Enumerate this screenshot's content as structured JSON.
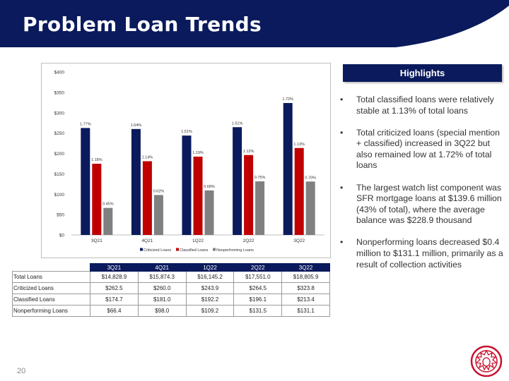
{
  "header": {
    "title": "Problem Loan Trends"
  },
  "colors": {
    "navy": "#0a1a5c",
    "red": "#c00000",
    "gray": "#7f7f7f"
  },
  "chart_data": {
    "type": "bar",
    "categories": [
      "3Q21",
      "4Q21",
      "1Q22",
      "2Q22",
      "3Q22"
    ],
    "ylim": [
      0,
      400
    ],
    "yticks": [
      "$0",
      "$50",
      "$100",
      "$150",
      "$200",
      "$250",
      "$300",
      "$350",
      "$400"
    ],
    "ytick_values": [
      0,
      50,
      100,
      150,
      200,
      250,
      300,
      350,
      400
    ],
    "grid": false,
    "legend": "bottom",
    "series": [
      {
        "name": "Criticized Loans",
        "color": "#0a1a5c",
        "values": [
          262.5,
          260.0,
          243.9,
          264.5,
          323.8
        ],
        "labels": [
          "1.77%",
          "1.64%",
          "1.51%",
          "1.51%",
          "1.72%"
        ]
      },
      {
        "name": "Classified Loans",
        "color": "#c00000",
        "values": [
          174.7,
          181.0,
          192.2,
          196.1,
          213.4
        ],
        "labels": [
          "1.18%",
          "1.14%",
          "1.19%",
          "1.12%",
          "1.13%"
        ]
      },
      {
        "name": "Nonperforming Loans",
        "color": "#808080",
        "values": [
          66.4,
          98.0,
          109.2,
          131.5,
          131.1
        ],
        "labels": [
          "0.45%",
          "0.62%",
          "0.68%",
          "0.75%",
          "0.70%"
        ]
      }
    ]
  },
  "highlights": {
    "header": "Highlights",
    "bullet": "•",
    "items": [
      "Total classified loans were relatively stable at 1.13% of total loans",
      "Total criticized loans (special mention + classified) increased in 3Q22 but also remained low at 1.72% of total loans",
      "The largest watch list component was SFR mortgage loans at $139.6 million (43% of total), where the average balance was $228.9 thousand",
      "Nonperforming loans decreased $0.4 million to $131.1 million, primarily as a result of collection activities"
    ]
  },
  "table": {
    "columns": [
      "3Q21",
      "4Q21",
      "1Q22",
      "2Q22",
      "3Q22"
    ],
    "rows": [
      {
        "label": "Total Loans",
        "values": [
          "$14,828.9",
          "$15,874.3",
          "$16,145.2",
          "$17,551.0",
          "$18,805.9"
        ]
      },
      {
        "label": "Criticized Loans",
        "values": [
          "$262.5",
          "$260.0",
          "$243.9",
          "$264.5",
          "$323.8"
        ]
      },
      {
        "label": "Classified Loans",
        "values": [
          "$174.7",
          "$181.0",
          "$192.2",
          "$196.1",
          "$213.4"
        ]
      },
      {
        "label": "Nonperforming Loans",
        "values": [
          "$66.4",
          "$98.0",
          "$109.2",
          "$131.5",
          "$131.1"
        ]
      }
    ]
  },
  "footer": {
    "page_number": "20"
  }
}
